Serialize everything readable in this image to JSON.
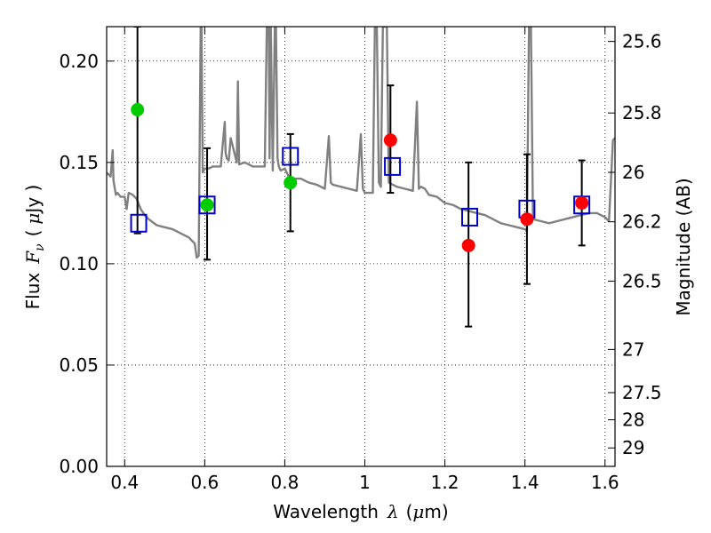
{
  "chart_data": {
    "type": "scatter",
    "xlabel": {
      "prefix": "Wavelength",
      "symbol": "λ",
      "unit_open": "(",
      "unit_mu": "μ",
      "unit_rest": "m)"
    },
    "ylabel": {
      "prefix": "Flux",
      "symbol": "F",
      "sub": "ν",
      "unit_open": "(",
      "unit_mu": "μ",
      "unit_rest": "Jy )"
    },
    "ylabel_right": "Magnitude (AB)",
    "xlim": [
      0.355,
      1.625
    ],
    "ylim": [
      0.0,
      0.217
    ],
    "x_ticks": [
      {
        "value": 0.4,
        "label": "0.4"
      },
      {
        "value": 0.6,
        "label": "0.6"
      },
      {
        "value": 0.8,
        "label": "0.8"
      },
      {
        "value": 1.0,
        "label": "1"
      },
      {
        "value": 1.2,
        "label": "1.2"
      },
      {
        "value": 1.4,
        "label": "1.4"
      },
      {
        "value": 1.6,
        "label": "1.6"
      }
    ],
    "y_ticks": [
      {
        "value": 0.0,
        "label": "0.00"
      },
      {
        "value": 0.05,
        "label": "0.05"
      },
      {
        "value": 0.1,
        "label": "0.10"
      },
      {
        "value": 0.15,
        "label": "0.15"
      },
      {
        "value": 0.2,
        "label": "0.20"
      }
    ],
    "right_ticks": [
      {
        "label": "25.6",
        "flux": 0.2097
      },
      {
        "label": "25.8",
        "flux": 0.1744
      },
      {
        "label": "26",
        "flux": 0.1451
      },
      {
        "label": "26.2",
        "flux": 0.1207
      },
      {
        "label": "26.5",
        "flux": 0.0914
      },
      {
        "label": "27",
        "flux": 0.0577
      },
      {
        "label": "27.5",
        "flux": 0.0364
      },
      {
        "label": "28",
        "flux": 0.023
      },
      {
        "label": "29",
        "flux": 0.0091
      }
    ],
    "grid": true,
    "series": [
      {
        "kind": "model-spectrum",
        "color": "#808080",
        "x": [
          0.355,
          0.365,
          0.37,
          0.372,
          0.378,
          0.382,
          0.39,
          0.4,
          0.405,
          0.41,
          0.42,
          0.43,
          0.44,
          0.45,
          0.46,
          0.48,
          0.5,
          0.52,
          0.54,
          0.56,
          0.575,
          0.58,
          0.585,
          0.59,
          0.592,
          0.595,
          0.6,
          0.61,
          0.62,
          0.64,
          0.65,
          0.652,
          0.655,
          0.66,
          0.665,
          0.68,
          0.683,
          0.686,
          0.7,
          0.72,
          0.74,
          0.75,
          0.755,
          0.76,
          0.762,
          0.765,
          0.77,
          0.775,
          0.778,
          0.782,
          0.785,
          0.79,
          0.8,
          0.81,
          0.82,
          0.84,
          0.86,
          0.88,
          0.9,
          0.91,
          0.915,
          0.92,
          0.94,
          0.96,
          0.98,
          0.99,
          0.995,
          1.0,
          1.02,
          1.025,
          1.03,
          1.035,
          1.04,
          1.045,
          1.055,
          1.06,
          1.07,
          1.08,
          1.1,
          1.12,
          1.13,
          1.135,
          1.14,
          1.15,
          1.16,
          1.18,
          1.2,
          1.22,
          1.24,
          1.26,
          1.28,
          1.3,
          1.32,
          1.34,
          1.36,
          1.38,
          1.4,
          1.405,
          1.41,
          1.415,
          1.42,
          1.44,
          1.46,
          1.48,
          1.5,
          1.52,
          1.54,
          1.56,
          1.58,
          1.6,
          1.61,
          1.62,
          1.625
        ],
        "y": [
          0.145,
          0.143,
          0.156,
          0.141,
          0.134,
          0.135,
          0.133,
          0.133,
          0.127,
          0.135,
          0.134,
          0.132,
          0.127,
          0.124,
          0.122,
          0.119,
          0.118,
          0.117,
          0.115,
          0.113,
          0.11,
          0.103,
          0.104,
          0.217,
          0.217,
          0.145,
          0.147,
          0.147,
          0.148,
          0.148,
          0.17,
          0.155,
          0.152,
          0.151,
          0.162,
          0.15,
          0.19,
          0.149,
          0.15,
          0.148,
          0.148,
          0.148,
          0.217,
          0.217,
          0.152,
          0.217,
          0.146,
          0.217,
          0.217,
          0.152,
          0.148,
          0.146,
          0.147,
          0.143,
          0.142,
          0.142,
          0.14,
          0.139,
          0.137,
          0.163,
          0.14,
          0.139,
          0.138,
          0.137,
          0.136,
          0.164,
          0.137,
          0.135,
          0.135,
          0.217,
          0.217,
          0.14,
          0.138,
          0.217,
          0.217,
          0.14,
          0.139,
          0.138,
          0.137,
          0.136,
          0.18,
          0.137,
          0.138,
          0.137,
          0.134,
          0.133,
          0.13,
          0.129,
          0.127,
          0.126,
          0.125,
          0.124,
          0.122,
          0.12,
          0.119,
          0.118,
          0.117,
          0.116,
          0.217,
          0.217,
          0.122,
          0.121,
          0.12,
          0.121,
          0.122,
          0.123,
          0.124,
          0.125,
          0.125,
          0.123,
          0.121,
          0.161,
          0.162
        ]
      },
      {
        "kind": "model-photometry",
        "marker": "open-square",
        "color": "#0000cc",
        "points": [
          {
            "x": 0.435,
            "y": 0.12
          },
          {
            "x": 0.606,
            "y": 0.129
          },
          {
            "x": 0.814,
            "y": 0.153
          },
          {
            "x": 1.069,
            "y": 0.148
          },
          {
            "x": 1.262,
            "y": 0.123
          },
          {
            "x": 1.405,
            "y": 0.127
          },
          {
            "x": 1.542,
            "y": 0.129
          }
        ]
      },
      {
        "kind": "observed-hst-acs",
        "marker": "filled-circle",
        "color": "#00cc00",
        "points": [
          {
            "x": 0.432,
            "y": 0.176,
            "err_low": 0.115,
            "err_high": 0.217
          },
          {
            "x": 0.606,
            "y": 0.129,
            "err_low": 0.102,
            "err_high": 0.157
          },
          {
            "x": 0.814,
            "y": 0.14,
            "err_low": 0.116,
            "err_high": 0.164
          }
        ]
      },
      {
        "kind": "observed-hst-wfc3",
        "marker": "filled-circle",
        "color": "#ff0000",
        "points": [
          {
            "x": 1.064,
            "y": 0.161,
            "err_low": 0.135,
            "err_high": 0.188
          },
          {
            "x": 1.259,
            "y": 0.109,
            "err_low": 0.069,
            "err_high": 0.15
          },
          {
            "x": 1.405,
            "y": 0.122,
            "err_low": 0.09,
            "err_high": 0.154
          },
          {
            "x": 1.542,
            "y": 0.13,
            "err_low": 0.109,
            "err_high": 0.151
          }
        ]
      }
    ]
  }
}
